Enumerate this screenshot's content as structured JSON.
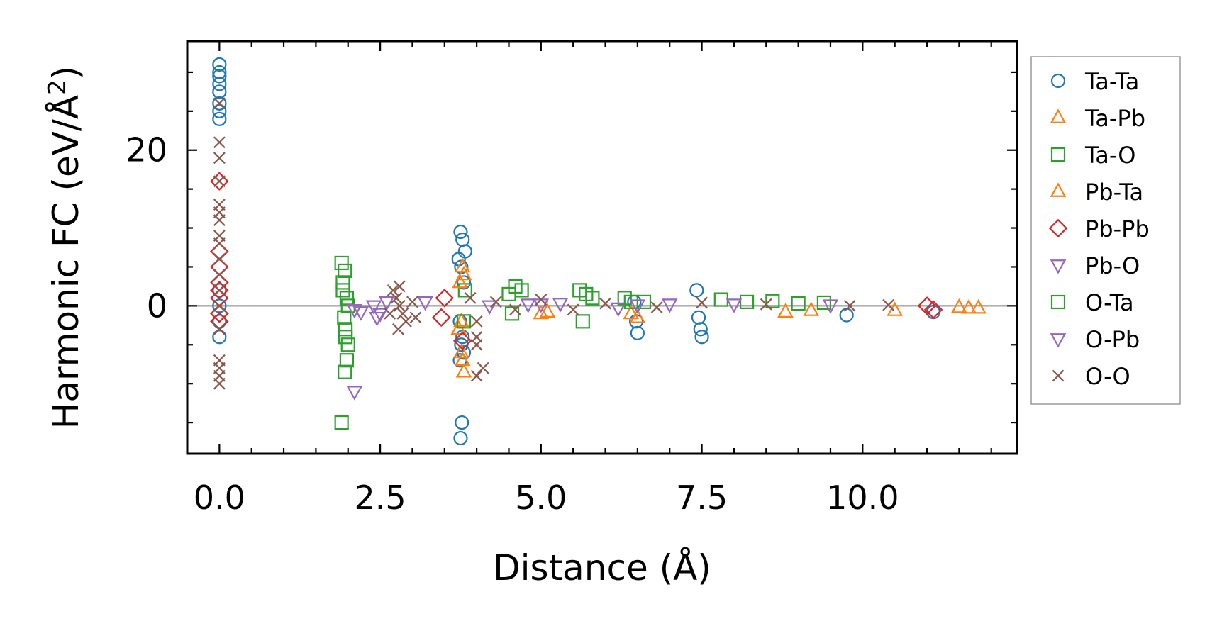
{
  "chart_data": {
    "type": "scatter",
    "xlabel": "Distance (Å)",
    "ylabel": "Harmonic FC (eV/Å",
    "ylabel_sup": "2",
    "ylabel_close": ")",
    "xlim": [
      -0.5,
      12.4
    ],
    "ylim": [
      -19,
      34
    ],
    "xticks": [
      0.0,
      2.5,
      5.0,
      7.5,
      10.0
    ],
    "xtick_labels": [
      "0.0",
      "2.5",
      "5.0",
      "7.5",
      "10.0"
    ],
    "yticks": [
      0,
      20
    ],
    "ytick_labels": [
      "0",
      "20"
    ],
    "zero_line": true,
    "legend_position": "outside-right",
    "series": [
      {
        "name": "Ta-Ta",
        "marker": "circle",
        "color": "#1f77b4",
        "points": [
          [
            0,
            31
          ],
          [
            0,
            30
          ],
          [
            0,
            29.5
          ],
          [
            0,
            28.5
          ],
          [
            0,
            27.5
          ],
          [
            0,
            26
          ],
          [
            0,
            25
          ],
          [
            0,
            24
          ],
          [
            0,
            2
          ],
          [
            0,
            0
          ],
          [
            0,
            -2
          ],
          [
            0,
            -4
          ],
          [
            3.75,
            9.5
          ],
          [
            3.78,
            8.5
          ],
          [
            3.82,
            7
          ],
          [
            3.72,
            6
          ],
          [
            3.76,
            5
          ],
          [
            3.8,
            3
          ],
          [
            3.74,
            -2
          ],
          [
            3.78,
            -4
          ],
          [
            3.76,
            -5
          ],
          [
            3.8,
            -6
          ],
          [
            3.74,
            -7
          ],
          [
            3.77,
            -15
          ],
          [
            3.75,
            -17
          ],
          [
            6.45,
            0.5
          ],
          [
            6.48,
            -2
          ],
          [
            6.5,
            -3.5
          ],
          [
            7.42,
            2
          ],
          [
            7.45,
            -1.5
          ],
          [
            7.48,
            -3
          ],
          [
            7.5,
            -4
          ],
          [
            9.75,
            -1.2
          ],
          [
            11.1,
            -0.8
          ]
        ]
      },
      {
        "name": "Ta-Pb",
        "marker": "triangle-up",
        "color": "#ff7f0e",
        "points": [
          [
            3.78,
            5
          ],
          [
            3.8,
            4
          ],
          [
            3.76,
            -2
          ],
          [
            3.78,
            -7
          ],
          [
            3.8,
            -8.5
          ],
          [
            3.72,
            -3
          ],
          [
            5.0,
            -1
          ],
          [
            6.5,
            -1.5
          ],
          [
            8.8,
            -0.8
          ],
          [
            10.5,
            -0.6
          ],
          [
            11.5,
            -0.2
          ],
          [
            11.65,
            -0.3
          ],
          [
            11.8,
            -0.3
          ]
        ]
      },
      {
        "name": "Ta-O",
        "marker": "square",
        "color": "#2ca02c",
        "points": [
          [
            1.9,
            5.5
          ],
          [
            1.95,
            4.5
          ],
          [
            1.92,
            2
          ],
          [
            1.98,
            1
          ],
          [
            2.0,
            0
          ],
          [
            1.94,
            -1.5
          ],
          [
            1.96,
            -3
          ],
          [
            2.0,
            -5
          ],
          [
            1.98,
            -7
          ],
          [
            1.95,
            -8.5
          ],
          [
            1.9,
            -15
          ],
          [
            3.82,
            2
          ],
          [
            3.8,
            -2
          ],
          [
            4.6,
            2.5
          ],
          [
            4.7,
            2
          ],
          [
            4.55,
            -1
          ],
          [
            5.6,
            2
          ],
          [
            5.7,
            1.5
          ],
          [
            5.65,
            -2
          ],
          [
            6.3,
            1
          ],
          [
            6.6,
            0.5
          ],
          [
            7.8,
            0.8
          ],
          [
            8.6,
            0.6
          ],
          [
            9.4,
            0.4
          ]
        ]
      },
      {
        "name": "Pb-Ta",
        "marker": "triangle-up",
        "color": "#ff7f0e",
        "points": [
          [
            3.74,
            3
          ],
          [
            3.76,
            -6
          ],
          [
            5.1,
            -0.8
          ],
          [
            6.4,
            -1
          ],
          [
            9.2,
            -0.6
          ]
        ]
      },
      {
        "name": "Pb-Pb",
        "marker": "diamond",
        "color": "#d62728",
        "points": [
          [
            0,
            16
          ],
          [
            0,
            7
          ],
          [
            0,
            5
          ],
          [
            0,
            3
          ],
          [
            0,
            2
          ],
          [
            0,
            1
          ],
          [
            0,
            -1
          ],
          [
            0,
            -2
          ],
          [
            3.5,
            1
          ],
          [
            3.45,
            -1.5
          ],
          [
            3.78,
            -4.5
          ],
          [
            11.0,
            0
          ],
          [
            11.1,
            -0.5
          ]
        ]
      },
      {
        "name": "Pb-O",
        "marker": "triangle-down",
        "color": "#9467bd",
        "points": [
          [
            2.1,
            -0.5
          ],
          [
            2.1,
            -11
          ],
          [
            2.4,
            0
          ],
          [
            2.5,
            -1
          ],
          [
            2.6,
            0.5
          ],
          [
            4.2,
            0
          ],
          [
            5.0,
            0.2
          ],
          [
            5.3,
            0.3
          ],
          [
            6.2,
            -0.3
          ],
          [
            7.0,
            0.2
          ]
        ]
      },
      {
        "name": "O-Ta",
        "marker": "square",
        "color": "#2ca02c",
        "points": [
          [
            1.92,
            3
          ],
          [
            1.96,
            -4
          ],
          [
            4.5,
            1.5
          ],
          [
            5.8,
            1
          ],
          [
            6.4,
            0.5
          ],
          [
            8.2,
            0.5
          ],
          [
            9.0,
            0.3
          ]
        ]
      },
      {
        "name": "O-Pb",
        "marker": "triangle-down",
        "color": "#9467bd",
        "points": [
          [
            2.2,
            -0.8
          ],
          [
            2.45,
            -1.5
          ],
          [
            3.2,
            0.5
          ],
          [
            4.8,
            0.2
          ],
          [
            6.5,
            0.1
          ],
          [
            8.0,
            0.2
          ],
          [
            9.5,
            0.1
          ]
        ]
      },
      {
        "name": "O-O",
        "marker": "x",
        "color": "#8c564b",
        "points": [
          [
            0,
            26
          ],
          [
            0,
            21
          ],
          [
            0,
            19
          ],
          [
            0,
            16
          ],
          [
            0,
            13
          ],
          [
            0,
            12
          ],
          [
            0,
            11
          ],
          [
            0,
            9
          ],
          [
            0,
            8
          ],
          [
            0,
            6
          ],
          [
            0,
            4
          ],
          [
            0,
            2
          ],
          [
            0,
            0
          ],
          [
            0,
            -3
          ],
          [
            0,
            -7
          ],
          [
            0,
            -8
          ],
          [
            0,
            -9
          ],
          [
            0,
            -10
          ],
          [
            2.7,
            2
          ],
          [
            2.75,
            1
          ],
          [
            2.8,
            0
          ],
          [
            2.85,
            -1
          ],
          [
            2.9,
            -2
          ],
          [
            2.8,
            2.5
          ],
          [
            2.78,
            -3
          ],
          [
            3.0,
            0.5
          ],
          [
            3.05,
            -1.5
          ],
          [
            2.65,
            -1
          ],
          [
            3.9,
            1
          ],
          [
            4.0,
            -2
          ],
          [
            4.0,
            -4
          ],
          [
            4.0,
            -5
          ],
          [
            4.1,
            -8
          ],
          [
            4.0,
            -9
          ],
          [
            4.3,
            0.5
          ],
          [
            4.6,
            -0.5
          ],
          [
            5.0,
            0.8
          ],
          [
            5.5,
            -0.5
          ],
          [
            6.0,
            0.3
          ],
          [
            6.8,
            -0.2
          ],
          [
            7.5,
            0.4
          ],
          [
            8.5,
            0.2
          ],
          [
            9.8,
            0
          ],
          [
            10.4,
            0.1
          ]
        ]
      }
    ]
  }
}
